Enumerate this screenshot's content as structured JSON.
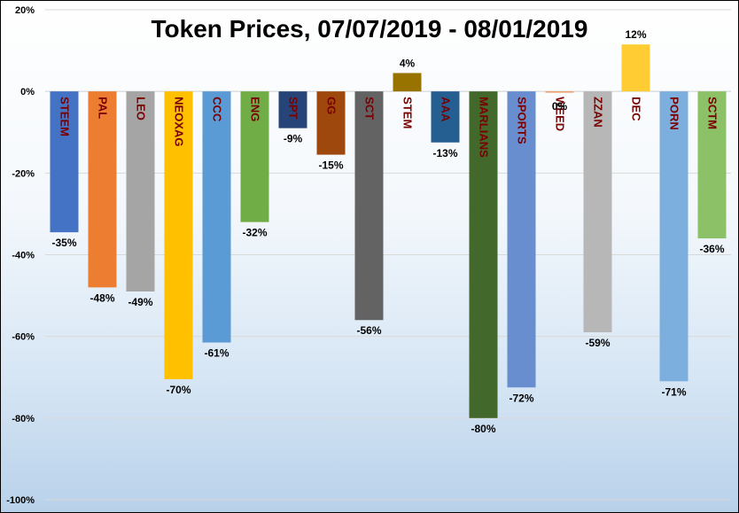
{
  "chart_data": {
    "type": "bar",
    "title": "Token Prices, 07/07/2019 - 08/01/2019",
    "xlabel": "",
    "ylabel": "",
    "ylim": [
      -100,
      20
    ],
    "yticks": [
      "20%",
      "0%",
      "-20%",
      "-40%",
      "-60%",
      "-80%",
      "-100%"
    ],
    "ytick_values": [
      20,
      0,
      -20,
      -40,
      -60,
      -80,
      -100
    ],
    "grid": true,
    "legend": "none",
    "categories": [
      "STEEM",
      "PAL",
      "LEO",
      "NEOXAG",
      "CCC",
      "ENG",
      "SPT",
      "GG",
      "SCT",
      "STEM",
      "AAA",
      "MARLIANS",
      "SPORTS",
      "WEED",
      "ZZAN",
      "DEC",
      "PORN",
      "SCTM"
    ],
    "values": [
      -34.5,
      -48,
      -49,
      -70.5,
      -61.5,
      -32,
      -9,
      -15.5,
      -56,
      4.5,
      -12.5,
      -80,
      -72.5,
      -0.3,
      -59,
      11.5,
      -71,
      -36
    ],
    "data_labels": [
      "-35%",
      "-48%",
      "-49%",
      "-70%",
      "-61%",
      "-32%",
      "-9%",
      "-15%",
      "-56%",
      "4%",
      "-13%",
      "-80%",
      "-72%",
      "0%",
      "-59%",
      "12%",
      "-71%",
      "-36%"
    ],
    "colors": [
      "#4472c4",
      "#ed7d31",
      "#a5a5a5",
      "#ffc000",
      "#5b9bd5",
      "#70ad47",
      "#264478",
      "#9e480e",
      "#636363",
      "#997300",
      "#255e91",
      "#43682b",
      "#698ed0",
      "#f1975a",
      "#b7b7b7",
      "#ffcd33",
      "#7cafdd",
      "#8cc168"
    ]
  }
}
